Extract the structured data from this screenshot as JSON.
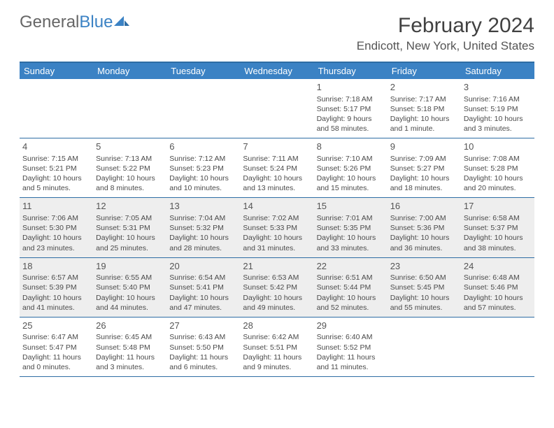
{
  "brand": {
    "part1": "General",
    "part2": "Blue"
  },
  "title": "February 2024",
  "location": "Endicott, New York, United States",
  "colors": {
    "header_bg": "#3b82c4",
    "border": "#2e6da4",
    "shade": "#eeeeee",
    "text": "#4a4a4a"
  },
  "day_names": [
    "Sunday",
    "Monday",
    "Tuesday",
    "Wednesday",
    "Thursday",
    "Friday",
    "Saturday"
  ],
  "weeks": [
    [
      {
        "day": "",
        "sunrise": "",
        "sunset": "",
        "daylight": ""
      },
      {
        "day": "",
        "sunrise": "",
        "sunset": "",
        "daylight": ""
      },
      {
        "day": "",
        "sunrise": "",
        "sunset": "",
        "daylight": ""
      },
      {
        "day": "",
        "sunrise": "",
        "sunset": "",
        "daylight": ""
      },
      {
        "day": "1",
        "sunrise": "Sunrise: 7:18 AM",
        "sunset": "Sunset: 5:17 PM",
        "daylight": "Daylight: 9 hours and 58 minutes."
      },
      {
        "day": "2",
        "sunrise": "Sunrise: 7:17 AM",
        "sunset": "Sunset: 5:18 PM",
        "daylight": "Daylight: 10 hours and 1 minute."
      },
      {
        "day": "3",
        "sunrise": "Sunrise: 7:16 AM",
        "sunset": "Sunset: 5:19 PM",
        "daylight": "Daylight: 10 hours and 3 minutes."
      }
    ],
    [
      {
        "day": "4",
        "sunrise": "Sunrise: 7:15 AM",
        "sunset": "Sunset: 5:21 PM",
        "daylight": "Daylight: 10 hours and 5 minutes."
      },
      {
        "day": "5",
        "sunrise": "Sunrise: 7:13 AM",
        "sunset": "Sunset: 5:22 PM",
        "daylight": "Daylight: 10 hours and 8 minutes."
      },
      {
        "day": "6",
        "sunrise": "Sunrise: 7:12 AM",
        "sunset": "Sunset: 5:23 PM",
        "daylight": "Daylight: 10 hours and 10 minutes."
      },
      {
        "day": "7",
        "sunrise": "Sunrise: 7:11 AM",
        "sunset": "Sunset: 5:24 PM",
        "daylight": "Daylight: 10 hours and 13 minutes."
      },
      {
        "day": "8",
        "sunrise": "Sunrise: 7:10 AM",
        "sunset": "Sunset: 5:26 PM",
        "daylight": "Daylight: 10 hours and 15 minutes."
      },
      {
        "day": "9",
        "sunrise": "Sunrise: 7:09 AM",
        "sunset": "Sunset: 5:27 PM",
        "daylight": "Daylight: 10 hours and 18 minutes."
      },
      {
        "day": "10",
        "sunrise": "Sunrise: 7:08 AM",
        "sunset": "Sunset: 5:28 PM",
        "daylight": "Daylight: 10 hours and 20 minutes."
      }
    ],
    [
      {
        "day": "11",
        "sunrise": "Sunrise: 7:06 AM",
        "sunset": "Sunset: 5:30 PM",
        "daylight": "Daylight: 10 hours and 23 minutes."
      },
      {
        "day": "12",
        "sunrise": "Sunrise: 7:05 AM",
        "sunset": "Sunset: 5:31 PM",
        "daylight": "Daylight: 10 hours and 25 minutes."
      },
      {
        "day": "13",
        "sunrise": "Sunrise: 7:04 AM",
        "sunset": "Sunset: 5:32 PM",
        "daylight": "Daylight: 10 hours and 28 minutes."
      },
      {
        "day": "14",
        "sunrise": "Sunrise: 7:02 AM",
        "sunset": "Sunset: 5:33 PM",
        "daylight": "Daylight: 10 hours and 31 minutes."
      },
      {
        "day": "15",
        "sunrise": "Sunrise: 7:01 AM",
        "sunset": "Sunset: 5:35 PM",
        "daylight": "Daylight: 10 hours and 33 minutes."
      },
      {
        "day": "16",
        "sunrise": "Sunrise: 7:00 AM",
        "sunset": "Sunset: 5:36 PM",
        "daylight": "Daylight: 10 hours and 36 minutes."
      },
      {
        "day": "17",
        "sunrise": "Sunrise: 6:58 AM",
        "sunset": "Sunset: 5:37 PM",
        "daylight": "Daylight: 10 hours and 38 minutes."
      }
    ],
    [
      {
        "day": "18",
        "sunrise": "Sunrise: 6:57 AM",
        "sunset": "Sunset: 5:39 PM",
        "daylight": "Daylight: 10 hours and 41 minutes."
      },
      {
        "day": "19",
        "sunrise": "Sunrise: 6:55 AM",
        "sunset": "Sunset: 5:40 PM",
        "daylight": "Daylight: 10 hours and 44 minutes."
      },
      {
        "day": "20",
        "sunrise": "Sunrise: 6:54 AM",
        "sunset": "Sunset: 5:41 PM",
        "daylight": "Daylight: 10 hours and 47 minutes."
      },
      {
        "day": "21",
        "sunrise": "Sunrise: 6:53 AM",
        "sunset": "Sunset: 5:42 PM",
        "daylight": "Daylight: 10 hours and 49 minutes."
      },
      {
        "day": "22",
        "sunrise": "Sunrise: 6:51 AM",
        "sunset": "Sunset: 5:44 PM",
        "daylight": "Daylight: 10 hours and 52 minutes."
      },
      {
        "day": "23",
        "sunrise": "Sunrise: 6:50 AM",
        "sunset": "Sunset: 5:45 PM",
        "daylight": "Daylight: 10 hours and 55 minutes."
      },
      {
        "day": "24",
        "sunrise": "Sunrise: 6:48 AM",
        "sunset": "Sunset: 5:46 PM",
        "daylight": "Daylight: 10 hours and 57 minutes."
      }
    ],
    [
      {
        "day": "25",
        "sunrise": "Sunrise: 6:47 AM",
        "sunset": "Sunset: 5:47 PM",
        "daylight": "Daylight: 11 hours and 0 minutes."
      },
      {
        "day": "26",
        "sunrise": "Sunrise: 6:45 AM",
        "sunset": "Sunset: 5:48 PM",
        "daylight": "Daylight: 11 hours and 3 minutes."
      },
      {
        "day": "27",
        "sunrise": "Sunrise: 6:43 AM",
        "sunset": "Sunset: 5:50 PM",
        "daylight": "Daylight: 11 hours and 6 minutes."
      },
      {
        "day": "28",
        "sunrise": "Sunrise: 6:42 AM",
        "sunset": "Sunset: 5:51 PM",
        "daylight": "Daylight: 11 hours and 9 minutes."
      },
      {
        "day": "29",
        "sunrise": "Sunrise: 6:40 AM",
        "sunset": "Sunset: 5:52 PM",
        "daylight": "Daylight: 11 hours and 11 minutes."
      },
      {
        "day": "",
        "sunrise": "",
        "sunset": "",
        "daylight": ""
      },
      {
        "day": "",
        "sunrise": "",
        "sunset": "",
        "daylight": ""
      }
    ]
  ]
}
